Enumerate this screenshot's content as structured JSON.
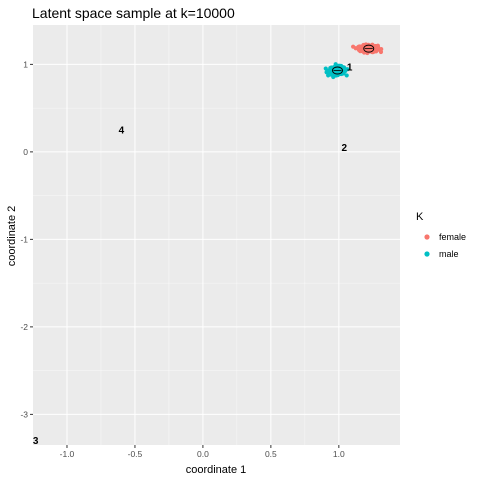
{
  "chart_data": {
    "type": "scatter",
    "title": "Latent space sample at k=10000",
    "xlabel": "coordinate 1",
    "ylabel": "coordinate 2",
    "xlim": [
      -1.25,
      1.45
    ],
    "ylim": [
      -3.35,
      1.45
    ],
    "x_ticks": [
      -1.0,
      -0.5,
      0.0,
      0.5,
      1.0
    ],
    "x_tick_labels": [
      "-1.0",
      "-0.5",
      "0.0",
      "0.5",
      "1.0"
    ],
    "y_ticks": [
      -3,
      -2,
      -1,
      0,
      1
    ],
    "y_tick_labels": [
      "-3",
      "-2",
      "-1",
      "0",
      "1"
    ],
    "grid": true,
    "legend": {
      "title": "K",
      "position": "right",
      "entries": [
        {
          "label": "female",
          "color": "#F8766D"
        },
        {
          "label": "male",
          "color": "#00BFC4"
        }
      ]
    },
    "series": [
      {
        "name": "female",
        "color": "#F8766D",
        "center": [
          1.22,
          1.18
        ],
        "spread": [
          0.06,
          0.035
        ]
      },
      {
        "name": "male",
        "color": "#00BFC4",
        "center": [
          0.99,
          0.93
        ],
        "spread": [
          0.055,
          0.04
        ]
      }
    ],
    "centroids": [
      {
        "x": 1.22,
        "y": 1.18
      },
      {
        "x": 0.99,
        "y": 0.93
      }
    ],
    "annotations": [
      {
        "label": "1",
        "x": 1.08,
        "y": 0.97
      },
      {
        "label": "2",
        "x": 1.04,
        "y": 0.05
      },
      {
        "label": "3",
        "x": -1.23,
        "y": -3.3
      },
      {
        "label": "4",
        "x": -0.6,
        "y": 0.25
      }
    ]
  }
}
